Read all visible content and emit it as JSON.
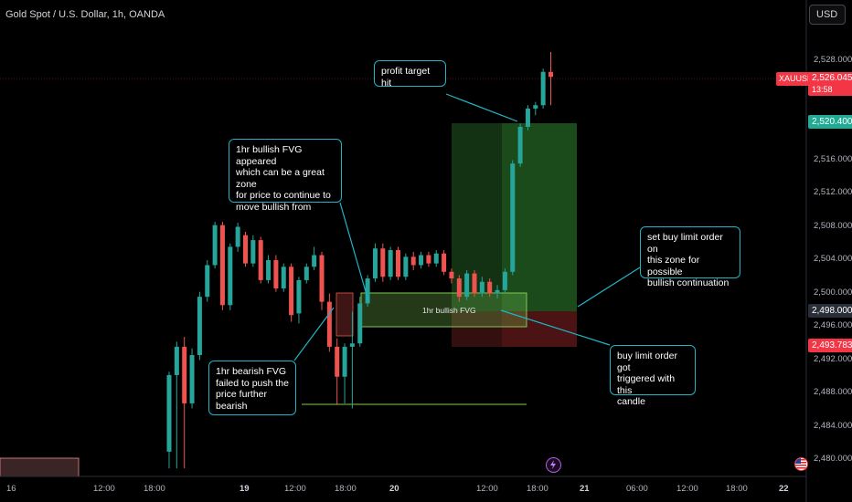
{
  "header": {
    "title": "Gold Spot / U.S. Dollar, 1h, OANDA",
    "currency": "USD"
  },
  "price_axis": {
    "ticks": [
      "2,528.000",
      "2,516.000",
      "2,512.000",
      "2,508.000",
      "2,504.000",
      "2,500.000",
      "2,496.000",
      "2,492.000",
      "2,488.000",
      "2,484.000",
      "2,480.000"
    ],
    "current": {
      "symbol": "XAUUSD",
      "price": "2,526.045",
      "countdown": "13:58",
      "color": "#f23645"
    },
    "target_price": {
      "price": "2,520.400",
      "color": "#22ab94"
    },
    "entry_price": {
      "price": "2,498.000",
      "color": "#2a2e39"
    },
    "stop_price": {
      "price": "2,493.783",
      "color": "#f23645"
    }
  },
  "time_axis": {
    "ticks": [
      "16",
      "12:00",
      "18:00",
      "19",
      "12:00",
      "18:00",
      "20",
      "12:00",
      "18:00",
      "21",
      "06:00",
      "12:00",
      "18:00",
      "22"
    ]
  },
  "annotations": {
    "profit_target": "profit target hit",
    "bullish_fvg": "1hr bullish FVG appeared\nwhich can be a great zone\nfor price to continue to\nmove bullish from",
    "bearish_fvg": "1hr bearish FVG\nfailed to push the\nprice further bearish",
    "buy_limit_set": "set buy limit order on\nthis zone for possible\nbullish continuation",
    "buy_limit_triggered": "buy limit order got\ntriggered with this\ncandle",
    "fvg_zone_label": "1hr bullish FVG"
  },
  "colors": {
    "up": "#26a69a",
    "down": "#ef5350",
    "callout_border": "#1fb4c7",
    "fvg_zone": "#7ccb55"
  },
  "chart_data": {
    "type": "candlestick",
    "title": "Gold Spot / U.S. Dollar, 1h, OANDA",
    "y_unit": "USD",
    "ylim": [
      2479,
      2531
    ],
    "candles": [
      {
        "o": 2481.0,
        "h": 2490.6,
        "l": 2479.0,
        "c": 2490.2
      },
      {
        "o": 2490.2,
        "h": 2494.2,
        "l": 2479.0,
        "c": 2493.6
      },
      {
        "o": 2493.6,
        "h": 2494.8,
        "l": 2479.0,
        "c": 2486.8
      },
      {
        "o": 2486.8,
        "h": 2493.4,
        "l": 2486.2,
        "c": 2492.6
      },
      {
        "o": 2492.6,
        "h": 2500.2,
        "l": 2492.0,
        "c": 2499.6
      },
      {
        "o": 2499.6,
        "h": 2504.0,
        "l": 2499.0,
        "c": 2503.4
      },
      {
        "o": 2503.4,
        "h": 2508.6,
        "l": 2503.0,
        "c": 2508.2
      },
      {
        "o": 2508.2,
        "h": 2508.6,
        "l": 2498.0,
        "c": 2498.6
      },
      {
        "o": 2498.6,
        "h": 2506.0,
        "l": 2498.0,
        "c": 2505.6
      },
      {
        "o": 2505.6,
        "h": 2508.5,
        "l": 2505.0,
        "c": 2508.0
      },
      {
        "o": 2507.0,
        "h": 2507.4,
        "l": 2503.2,
        "c": 2503.6
      },
      {
        "o": 2503.6,
        "h": 2507.0,
        "l": 2503.2,
        "c": 2506.4
      },
      {
        "o": 2506.4,
        "h": 2506.8,
        "l": 2501.2,
        "c": 2501.6
      },
      {
        "o": 2501.6,
        "h": 2504.6,
        "l": 2501.2,
        "c": 2504.0
      },
      {
        "o": 2504.0,
        "h": 2504.6,
        "l": 2500.2,
        "c": 2500.6
      },
      {
        "o": 2500.6,
        "h": 2503.6,
        "l": 2500.2,
        "c": 2503.2
      },
      {
        "o": 2503.2,
        "h": 2503.6,
        "l": 2496.6,
        "c": 2497.4
      },
      {
        "o": 2497.6,
        "h": 2502.0,
        "l": 2496.4,
        "c": 2501.6
      },
      {
        "o": 2501.6,
        "h": 2503.6,
        "l": 2501.2,
        "c": 2503.2
      },
      {
        "o": 2503.2,
        "h": 2505.6,
        "l": 2502.8,
        "c": 2504.6
      },
      {
        "o": 2504.6,
        "h": 2505.0,
        "l": 2498.0,
        "c": 2499.0
      },
      {
        "o": 2499.0,
        "h": 2500.0,
        "l": 2493.0,
        "c": 2493.6
      },
      {
        "o": 2493.6,
        "h": 2494.6,
        "l": 2486.6,
        "c": 2490.0
      },
      {
        "o": 2490.0,
        "h": 2494.0,
        "l": 2486.8,
        "c": 2493.6
      },
      {
        "o": 2493.6,
        "h": 2497.8,
        "l": 2486.2,
        "c": 2494.0
      },
      {
        "o": 2494.0,
        "h": 2499.6,
        "l": 2493.6,
        "c": 2498.8
      },
      {
        "o": 2498.8,
        "h": 2502.2,
        "l": 2498.4,
        "c": 2501.8
      },
      {
        "o": 2501.8,
        "h": 2506.0,
        "l": 2501.4,
        "c": 2505.4
      },
      {
        "o": 2505.4,
        "h": 2506.0,
        "l": 2501.4,
        "c": 2502.0
      },
      {
        "o": 2502.0,
        "h": 2505.6,
        "l": 2501.6,
        "c": 2505.2
      },
      {
        "o": 2505.2,
        "h": 2505.6,
        "l": 2501.6,
        "c": 2502.0
      },
      {
        "o": 2502.0,
        "h": 2504.8,
        "l": 2501.6,
        "c": 2504.4
      },
      {
        "o": 2504.4,
        "h": 2505.0,
        "l": 2502.8,
        "c": 2503.4
      },
      {
        "o": 2503.4,
        "h": 2505.0,
        "l": 2503.0,
        "c": 2504.6
      },
      {
        "o": 2504.6,
        "h": 2505.0,
        "l": 2503.2,
        "c": 2503.6
      },
      {
        "o": 2503.6,
        "h": 2505.2,
        "l": 2503.2,
        "c": 2504.8
      },
      {
        "o": 2504.8,
        "h": 2505.2,
        "l": 2502.2,
        "c": 2502.6
      },
      {
        "o": 2502.6,
        "h": 2503.0,
        "l": 2501.2,
        "c": 2501.8
      },
      {
        "o": 2501.8,
        "h": 2502.2,
        "l": 2499.0,
        "c": 2499.6
      },
      {
        "o": 2499.6,
        "h": 2502.8,
        "l": 2499.2,
        "c": 2502.4
      },
      {
        "o": 2502.4,
        "h": 2502.8,
        "l": 2499.6,
        "c": 2500.0
      },
      {
        "o": 2500.0,
        "h": 2502.0,
        "l": 2499.6,
        "c": 2501.4
      },
      {
        "o": 2501.4,
        "h": 2501.8,
        "l": 2499.6,
        "c": 2500.0
      },
      {
        "o": 2500.0,
        "h": 2501.0,
        "l": 2499.4,
        "c": 2500.4
      },
      {
        "o": 2500.4,
        "h": 2503.0,
        "l": 2500.0,
        "c": 2502.6
      },
      {
        "o": 2502.6,
        "h": 2516.0,
        "l": 2502.2,
        "c": 2515.6
      },
      {
        "o": 2515.6,
        "h": 2520.4,
        "l": 2515.2,
        "c": 2520.0
      },
      {
        "o": 2520.0,
        "h": 2522.6,
        "l": 2519.6,
        "c": 2522.2
      },
      {
        "o": 2522.2,
        "h": 2523.0,
        "l": 2521.4,
        "c": 2522.6
      },
      {
        "o": 2522.6,
        "h": 2527.0,
        "l": 2522.2,
        "c": 2526.6
      },
      {
        "o": 2526.6,
        "h": 2529.0,
        "l": 2522.6,
        "c": 2526.0
      }
    ],
    "levels": {
      "current": 2526.045,
      "target": 2520.4,
      "entry": 2498.0,
      "stop": 2493.783,
      "bearish_sweep_low": 2487.0
    },
    "zones": [
      {
        "name": "1hr bullish FVG",
        "top": 2500.0,
        "bottom": 2496.4
      },
      {
        "name": "bearish FVG",
        "top": 2500.0,
        "bottom": 2495.0
      }
    ],
    "grid": false
  }
}
